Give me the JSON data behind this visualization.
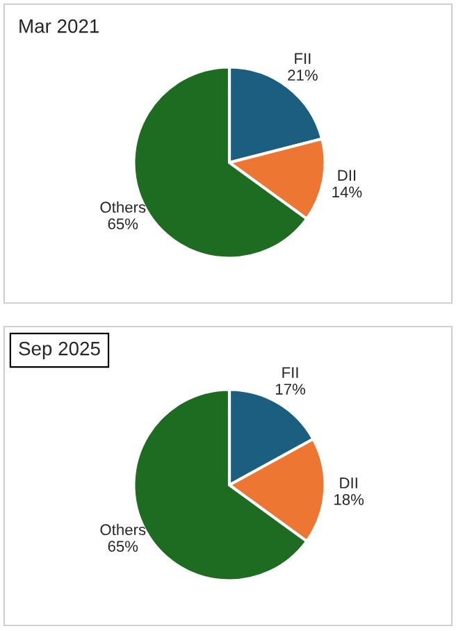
{
  "chart_data": [
    {
      "type": "pie",
      "title": "Mar 2021",
      "categories": [
        "FII",
        "DII",
        "Others"
      ],
      "values": [
        21,
        14,
        65
      ],
      "colors": [
        "#1b5e80",
        "#ed7633",
        "#1e6b22"
      ],
      "value_labels": [
        "21%",
        "14%",
        "65%"
      ]
    },
    {
      "type": "pie",
      "title": "Sep 2025",
      "categories": [
        "FII",
        "DII",
        "Others"
      ],
      "values": [
        17,
        18,
        65
      ],
      "colors": [
        "#1b5e80",
        "#ed7633",
        "#1e6b22"
      ],
      "value_labels": [
        "17%",
        "18%",
        "65%"
      ]
    }
  ]
}
